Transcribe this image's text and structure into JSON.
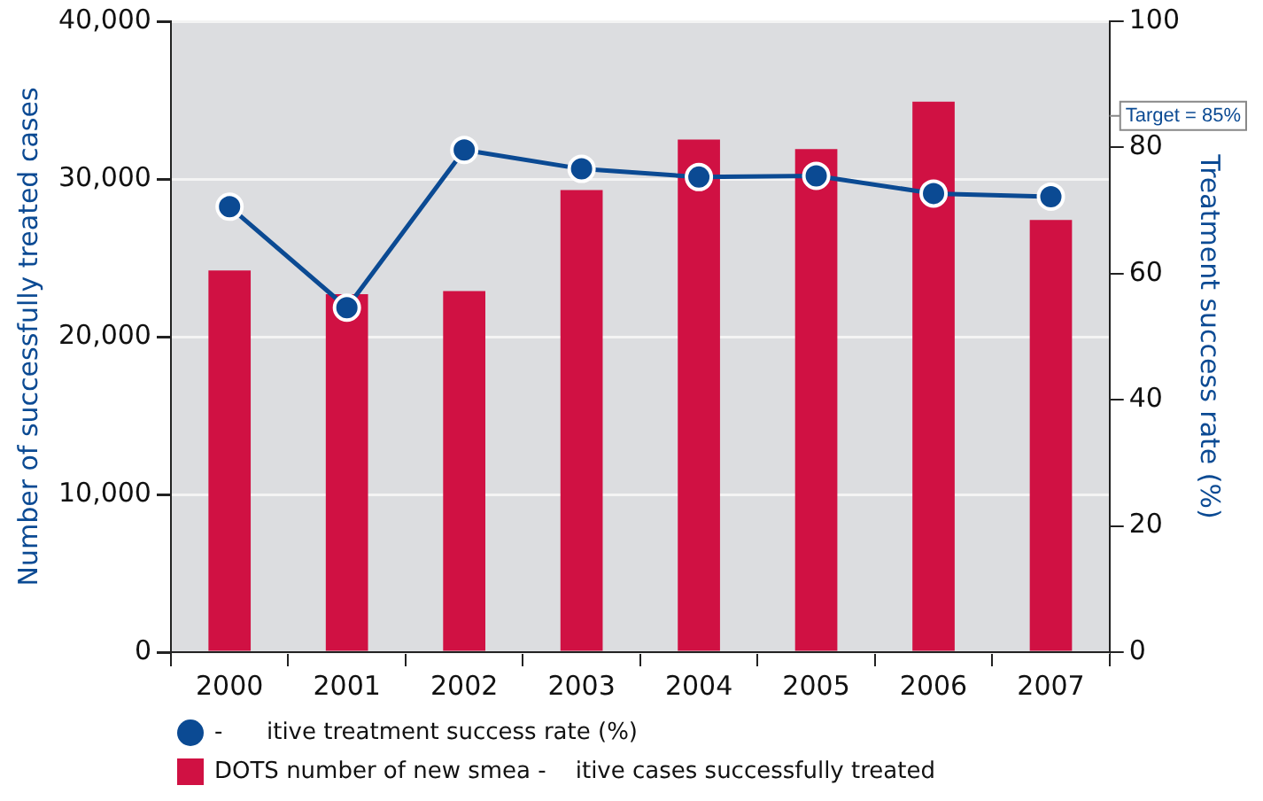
{
  "chart_data": {
    "type": "bar",
    "categories": [
      "2000",
      "2001",
      "2002",
      "2003",
      "2004",
      "2005",
      "2006",
      "2007"
    ],
    "ylabel": "Number of successfully treated cases",
    "y2label": "Treatment success rate (%)",
    "ylim": [
      0,
      40000
    ],
    "yticks": [
      {
        "value": 0,
        "label": "0"
      },
      {
        "value": 10000,
        "label": "10,000"
      },
      {
        "value": 20000,
        "label": "20,000"
      },
      {
        "value": 30000,
        "label": "30,000"
      },
      {
        "value": 40000,
        "label": "40,000"
      }
    ],
    "y2lim": [
      0,
      100
    ],
    "y2ticks": [
      0,
      20,
      40,
      60,
      80,
      100
    ],
    "series": [
      {
        "name": "-      itive treatment success rate (%)",
        "type": "line",
        "axis": "y2",
        "color": "#0b4a93",
        "values": [
          70.6,
          54.6,
          79.6,
          76.6,
          75.3,
          75.5,
          72.7,
          72.2
        ]
      },
      {
        "name": "DOTS number of new smea -    itive cases successfully treated",
        "color": "#d01143",
        "values": [
          24200,
          22700,
          22900,
          29300,
          32500,
          31900,
          34900,
          27400
        ]
      }
    ],
    "ref_lines": [
      {
        "axis": "y2",
        "value": 85,
        "label": "Target = 85%"
      }
    ],
    "grid": "y",
    "legend": "bottom",
    "marker": "circle",
    "line_style": "solid"
  }
}
